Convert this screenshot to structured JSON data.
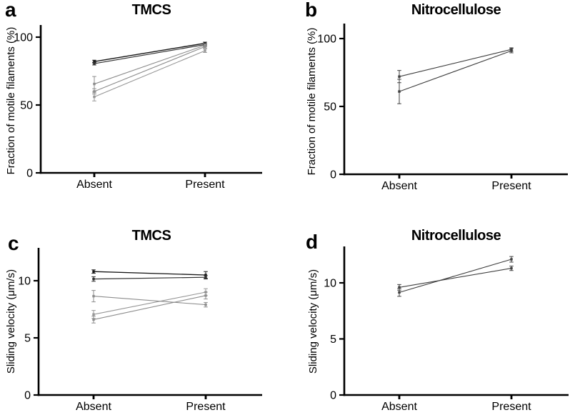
{
  "figure": {
    "background": "#ffffff",
    "axis_color": "#000000",
    "text_color": "#000000",
    "dark_series_color": "#161616",
    "light_series_color": "#8d8d8d",
    "medium_series_color": "#3f3f3f"
  },
  "chart_data": [
    {
      "type": "line",
      "panel_label": "a",
      "title": "TMCS",
      "xlabel": "",
      "ylabel": "Fraction of motile filaments (%)",
      "categories": [
        "Absent",
        "Present"
      ],
      "yticks": [
        0,
        50,
        100
      ],
      "ylim": [
        0,
        109
      ],
      "grid": false,
      "legend_position": "none",
      "error_bars": true,
      "series": [
        {
          "values": [
            82,
            95.5
          ],
          "errors": [
            1,
            0.8
          ],
          "color": "#161616",
          "width": 1.4
        },
        {
          "values": [
            80.5,
            94.5
          ],
          "errors": [
            1,
            0.8
          ],
          "color": "#303030",
          "width": 1.2
        },
        {
          "values": [
            65.5,
            94
          ],
          "errors": [
            5.5,
            1
          ],
          "color": "#8d8d8d",
          "width": 1.1
        },
        {
          "values": [
            60,
            93
          ],
          "errors": [
            2,
            1
          ],
          "color": "#8d8d8d",
          "width": 1.1
        },
        {
          "values": [
            56,
            90
          ],
          "errors": [
            3,
            1.3
          ],
          "color": "#979797",
          "width": 1.1
        }
      ]
    },
    {
      "type": "line",
      "panel_label": "b",
      "title": "Nitrocellulose",
      "xlabel": "",
      "ylabel": "Fraction of motile filaments (%)",
      "categories": [
        "Absent",
        "Present"
      ],
      "yticks": [
        0,
        50,
        100
      ],
      "ylim": [
        0,
        111
      ],
      "grid": false,
      "legend_position": "none",
      "error_bars": true,
      "series": [
        {
          "values": [
            72,
            92
          ],
          "errors": [
            4.5,
            1.2
          ],
          "color": "#3f3f3f",
          "width": 1.1
        },
        {
          "values": [
            61,
            91
          ],
          "errors": [
            9,
            1.5
          ],
          "color": "#3f3f3f",
          "width": 1.1
        }
      ]
    },
    {
      "type": "line",
      "panel_label": "c",
      "title": "TMCS",
      "xlabel": "",
      "ylabel": "Sliding velocity (μm/s)",
      "categories": [
        "Absent",
        "Present"
      ],
      "yticks": [
        0,
        5,
        10
      ],
      "ylim": [
        0,
        12.9
      ],
      "grid": false,
      "legend_position": "none",
      "error_bars": true,
      "series": [
        {
          "values": [
            10.8,
            10.5
          ],
          "errors": [
            0.15,
            0.3
          ],
          "color": "#161616",
          "width": 1.3
        },
        {
          "values": [
            10.15,
            10.3
          ],
          "errors": [
            0.2,
            0.15
          ],
          "color": "#303030",
          "width": 1.2
        },
        {
          "values": [
            8.65,
            7.9
          ],
          "errors": [
            0.5,
            0.2
          ],
          "color": "#8d8d8d",
          "width": 1.1
        },
        {
          "values": [
            7.05,
            9.0
          ],
          "errors": [
            0.35,
            0.3
          ],
          "color": "#979797",
          "width": 1.1
        },
        {
          "values": [
            6.6,
            8.7
          ],
          "errors": [
            0.3,
            0.3
          ],
          "color": "#8d8d8d",
          "width": 1.1
        }
      ]
    },
    {
      "type": "line",
      "panel_label": "d",
      "title": "Nitrocellulose",
      "xlabel": "",
      "ylabel": "Sliding velocity (μm/s)",
      "categories": [
        "Absent",
        "Present"
      ],
      "yticks": [
        0,
        5,
        10
      ],
      "ylim": [
        0,
        13.2
      ],
      "grid": false,
      "legend_position": "none",
      "error_bars": true,
      "series": [
        {
          "values": [
            9.6,
            11.3
          ],
          "errors": [
            0.25,
            0.2
          ],
          "color": "#3f3f3f",
          "width": 1.1
        },
        {
          "values": [
            9.15,
            12.1
          ],
          "errors": [
            0.35,
            0.25
          ],
          "color": "#3f3f3f",
          "width": 1.1
        }
      ]
    }
  ]
}
